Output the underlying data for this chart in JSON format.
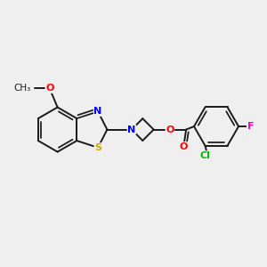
{
  "background_color": "#efefef",
  "bond_color": "#1a1a1a",
  "atom_colors": {
    "O": "#ff0000",
    "N": "#0000ff",
    "S": "#ccaa00",
    "Cl": "#00bb00",
    "F": "#ff00cc"
  },
  "figsize": [
    3.0,
    3.0
  ],
  "dpi": 100,
  "lw": 1.4,
  "lw_double_inner": 1.1
}
